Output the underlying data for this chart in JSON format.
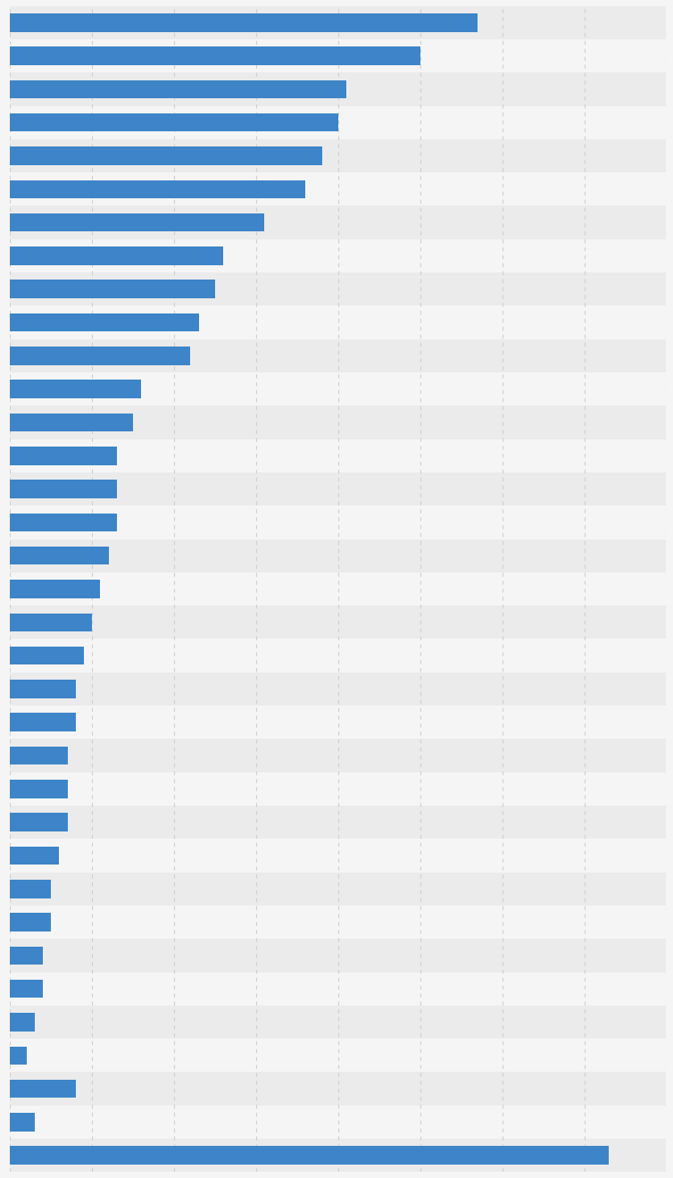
{
  "values": [
    57,
    50,
    41,
    40,
    38,
    36,
    31,
    26,
    25,
    23,
    22,
    16,
    15,
    13,
    13,
    13,
    12,
    11,
    10,
    9,
    8,
    8,
    7,
    7,
    7,
    6,
    5,
    5,
    4,
    4,
    3,
    2,
    8,
    3,
    73
  ],
  "bar_color": "#3d85c8",
  "background_color": "#f5f5f5",
  "row_even_color": "#ebebeb",
  "row_odd_color": "#f5f5f5",
  "xlim_max": 80,
  "grid_step": 10,
  "figsize": [
    7.54,
    13.19
  ],
  "dpi": 100,
  "bar_height": 0.55,
  "grid_color": "#d0d0d0",
  "grid_linestyle": "--"
}
